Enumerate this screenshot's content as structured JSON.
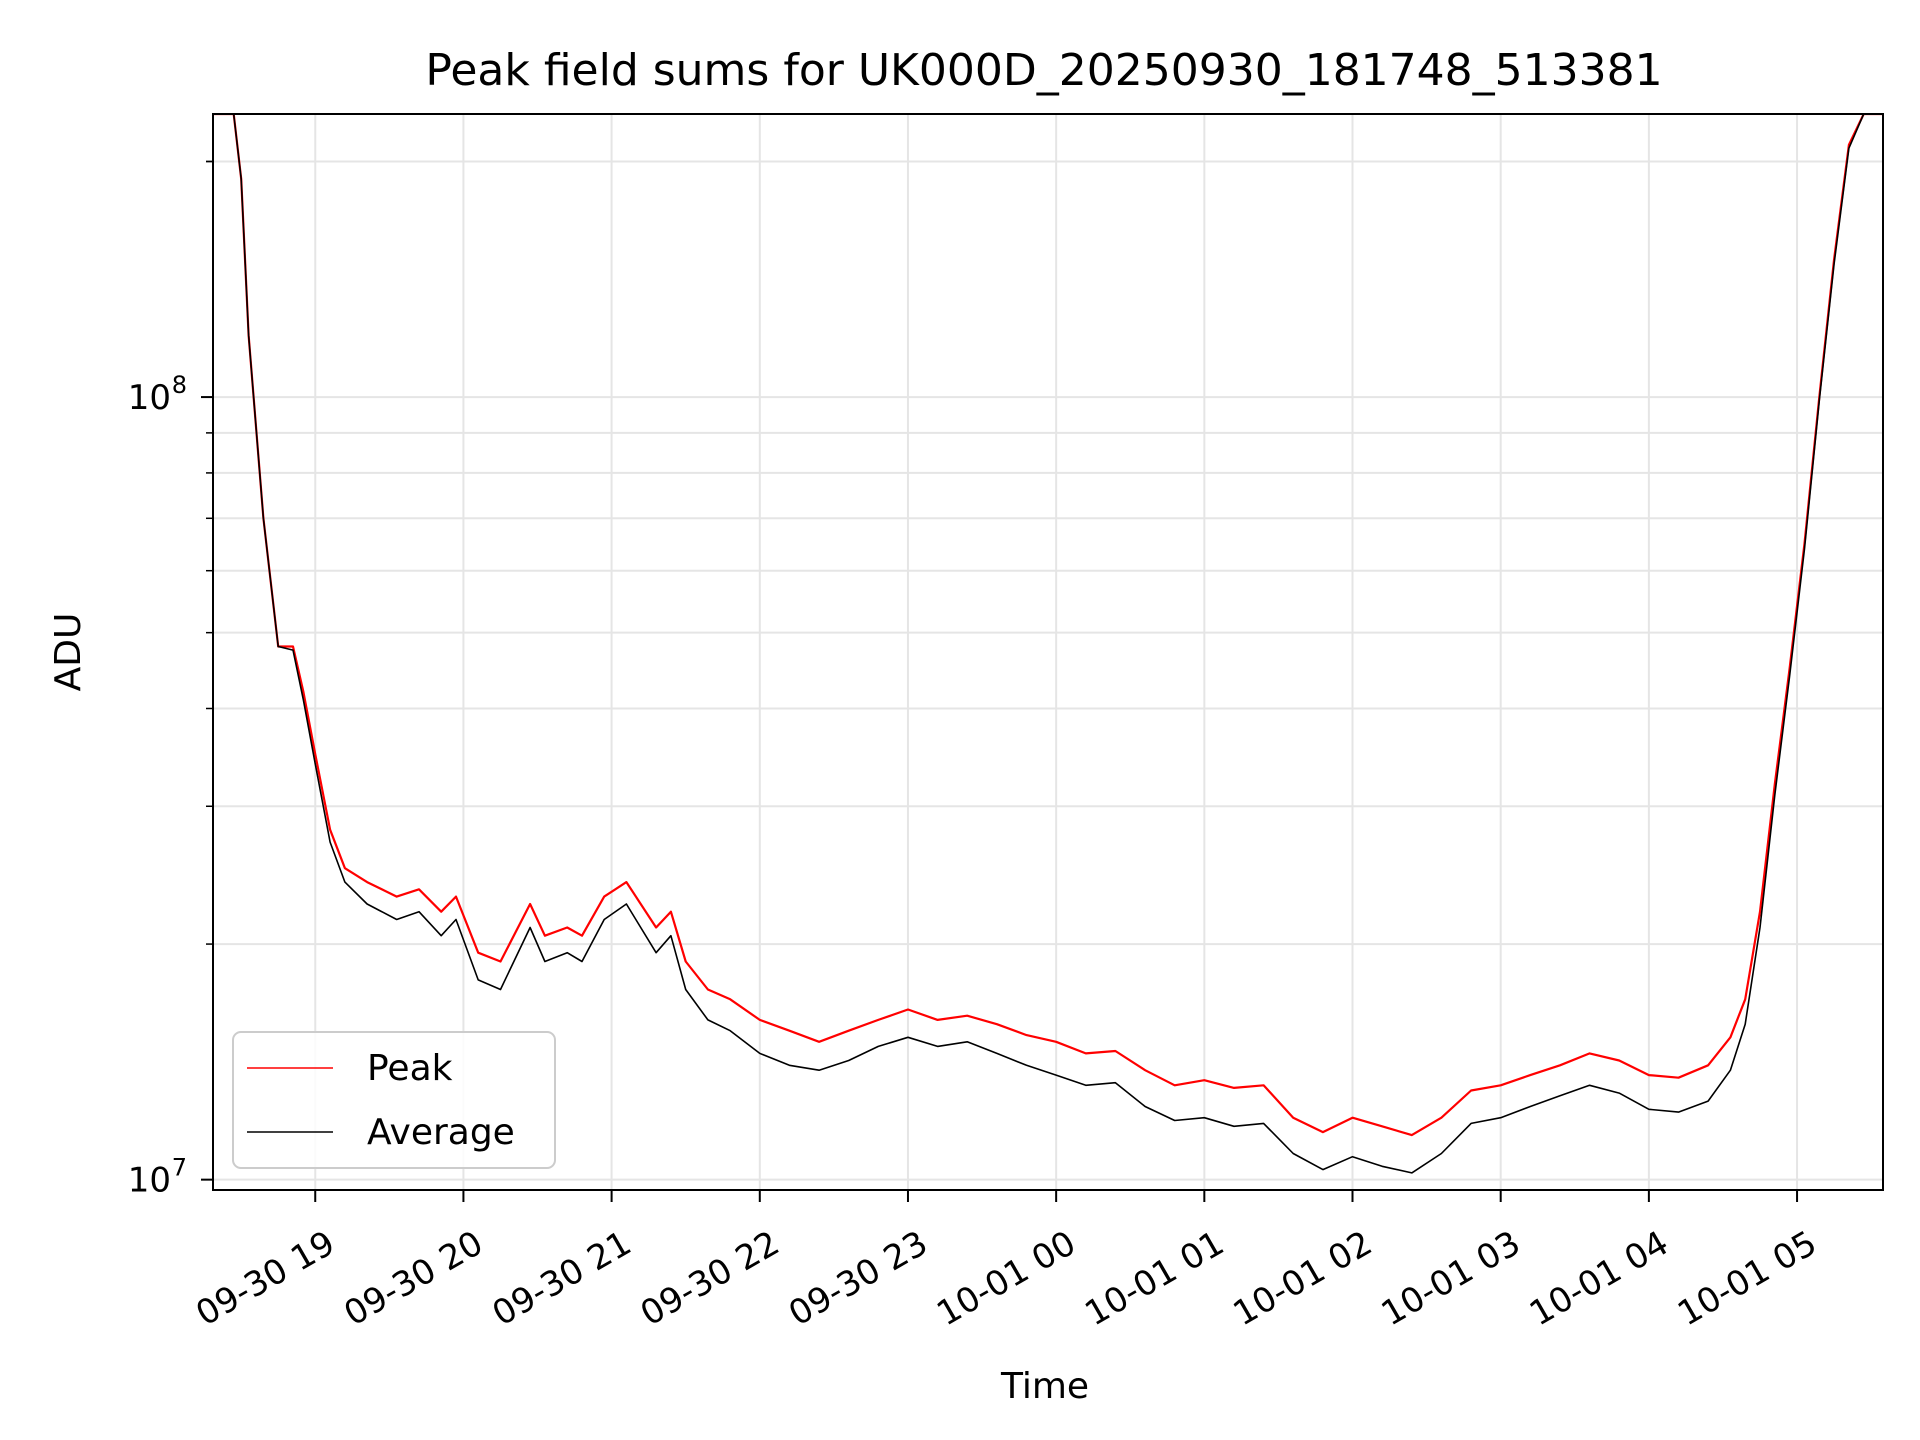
{
  "chart_data": {
    "type": "line",
    "title": "Peak field sums for UK000D_20250930_181748_513381",
    "xlabel": "Time",
    "ylabel": "ADU",
    "yscale": "log",
    "ylim": [
      9700000,
      230000000
    ],
    "xlim_hours": [
      18.31,
      29.58
    ],
    "grid": true,
    "legend_position": "lower-left",
    "x_ticks": [
      {
        "hour": 19,
        "label": "09-30 19"
      },
      {
        "hour": 20,
        "label": "09-30 20"
      },
      {
        "hour": 21,
        "label": "09-30 21"
      },
      {
        "hour": 22,
        "label": "09-30 22"
      },
      {
        "hour": 23,
        "label": "09-30 23"
      },
      {
        "hour": 24,
        "label": "10-01 00"
      },
      {
        "hour": 25,
        "label": "10-01 01"
      },
      {
        "hour": 26,
        "label": "10-01 02"
      },
      {
        "hour": 27,
        "label": "10-01 03"
      },
      {
        "hour": 28,
        "label": "10-01 04"
      },
      {
        "hour": 29,
        "label": "10-01 05"
      }
    ],
    "y_ticks": [
      {
        "value": 10000000,
        "base": "10",
        "exp": "7"
      },
      {
        "value": 100000000,
        "base": "10",
        "exp": "8"
      }
    ],
    "series": [
      {
        "name": "Peak",
        "color": "#ff0000",
        "x_hours": [
          18.31,
          18.45,
          18.5,
          18.55,
          18.65,
          18.75,
          18.85,
          18.92,
          19.0,
          19.1,
          19.2,
          19.35,
          19.55,
          19.7,
          19.85,
          19.95,
          20.1,
          20.25,
          20.45,
          20.55,
          20.7,
          20.8,
          20.95,
          21.1,
          21.3,
          21.4,
          21.5,
          21.65,
          21.8,
          22.0,
          22.2,
          22.4,
          22.6,
          22.8,
          23.0,
          23.2,
          23.4,
          23.6,
          23.8,
          24.0,
          24.2,
          24.4,
          24.6,
          24.8,
          25.0,
          25.2,
          25.4,
          25.6,
          25.8,
          26.0,
          26.2,
          26.4,
          26.6,
          26.8,
          27.0,
          27.2,
          27.4,
          27.6,
          27.8,
          28.0,
          28.2,
          28.4,
          28.55,
          28.65,
          28.75,
          28.85,
          28.95,
          29.05,
          29.15,
          29.25,
          29.35,
          29.45,
          29.58
        ],
        "values": [
          230000000,
          230000000,
          190000000,
          120000000,
          70000000,
          48000000,
          48000000,
          42000000,
          35000000,
          28000000,
          25000000,
          24000000,
          23000000,
          23500000,
          22000000,
          23000000,
          19500000,
          19000000,
          22500000,
          20500000,
          21000000,
          20500000,
          23000000,
          24000000,
          21000000,
          22000000,
          19000000,
          17500000,
          17000000,
          16000000,
          15500000,
          15000000,
          15500000,
          16000000,
          16500000,
          16000000,
          16200000,
          15800000,
          15300000,
          15000000,
          14500000,
          14600000,
          13800000,
          13200000,
          13400000,
          13100000,
          13200000,
          12000000,
          11500000,
          12000000,
          11700000,
          11400000,
          12000000,
          13000000,
          13200000,
          13600000,
          14000000,
          14500000,
          14200000,
          13600000,
          13500000,
          14000000,
          15200000,
          17000000,
          22000000,
          32000000,
          45000000,
          65000000,
          100000000,
          150000000,
          210000000,
          230000000,
          230000000
        ]
      },
      {
        "name": "Average",
        "color": "#000000",
        "x_hours": [
          18.31,
          18.45,
          18.5,
          18.55,
          18.65,
          18.75,
          18.85,
          18.92,
          19.0,
          19.1,
          19.2,
          19.35,
          19.55,
          19.7,
          19.85,
          19.95,
          20.1,
          20.25,
          20.45,
          20.55,
          20.7,
          20.8,
          20.95,
          21.1,
          21.3,
          21.4,
          21.5,
          21.65,
          21.8,
          22.0,
          22.2,
          22.4,
          22.6,
          22.8,
          23.0,
          23.2,
          23.4,
          23.6,
          23.8,
          24.0,
          24.2,
          24.4,
          24.6,
          24.8,
          25.0,
          25.2,
          25.4,
          25.6,
          25.8,
          26.0,
          26.2,
          26.4,
          26.6,
          26.8,
          27.0,
          27.2,
          27.4,
          27.6,
          27.8,
          28.0,
          28.2,
          28.4,
          28.55,
          28.65,
          28.75,
          28.85,
          28.95,
          29.05,
          29.15,
          29.25,
          29.35,
          29.45,
          29.58
        ],
        "values": [
          230000000,
          230000000,
          190000000,
          120000000,
          70000000,
          48000000,
          47500000,
          41000000,
          34000000,
          27000000,
          24000000,
          22500000,
          21500000,
          22000000,
          20500000,
          21500000,
          18000000,
          17500000,
          21000000,
          19000000,
          19500000,
          19000000,
          21500000,
          22500000,
          19500000,
          20500000,
          17500000,
          16000000,
          15500000,
          14500000,
          14000000,
          13800000,
          14200000,
          14800000,
          15200000,
          14800000,
          15000000,
          14500000,
          14000000,
          13600000,
          13200000,
          13300000,
          12400000,
          11900000,
          12000000,
          11700000,
          11800000,
          10800000,
          10300000,
          10700000,
          10400000,
          10200000,
          10800000,
          11800000,
          12000000,
          12400000,
          12800000,
          13200000,
          12900000,
          12300000,
          12200000,
          12600000,
          13800000,
          15800000,
          21000000,
          31000000,
          44000000,
          64000000,
          99000000,
          148000000,
          208000000,
          230000000,
          230000000
        ]
      }
    ]
  }
}
